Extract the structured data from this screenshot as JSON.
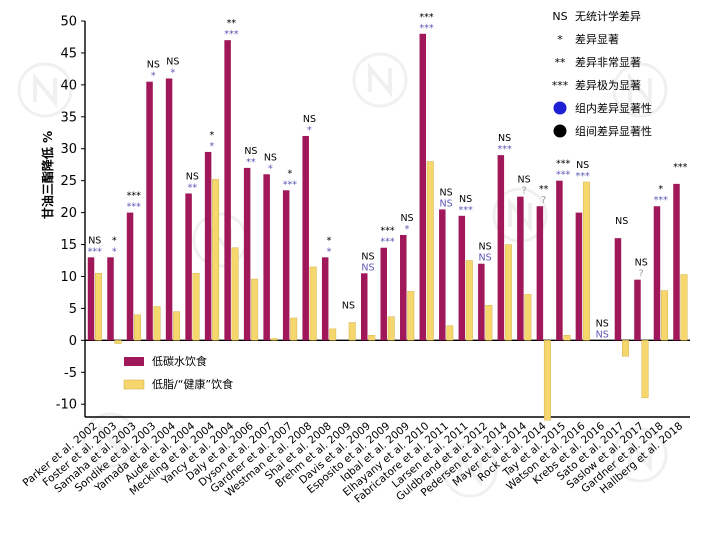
{
  "chart_data": {
    "type": "bar",
    "ylabel": "甘油三酯降低 %",
    "ylim": [
      -12,
      50
    ],
    "yticks": [
      -10,
      -5,
      0,
      5,
      10,
      15,
      20,
      25,
      30,
      35,
      40,
      45,
      50
    ],
    "grid": false,
    "colors": {
      "low_carb": "#a0185a",
      "low_fat": "#f5d76e",
      "within_sig": "#5b57b5",
      "between_sig": "#000000"
    },
    "categories": [
      "Parker et al. 2002",
      "Foster et al. 2003",
      "Samaha et al. 2003",
      "Sondike et al. 2003",
      "Yamada et al. 2004",
      "Aude et al. 2004",
      "Meckling et al. 2004",
      "Yancy et al. 2004",
      "Daly et al. 2006",
      "Dyson et al. 2007",
      "Gardner et al. 2007",
      "Westman et al. 2008",
      "Shai et al. 2008",
      "Brehm et al. 2009",
      "Davis et al. 2009",
      "Esposito et al. 2009",
      "Iqbal et al. 2009",
      "Elhayany et al. 2010",
      "Fabricatore et al. 2011",
      "Larsen et al. 2011",
      "Guldbrand et al. 2012",
      "Pedersen et al. 2014",
      "Mayer et al. 2014",
      "Rock et al. 2014",
      "Tay et al. 2015",
      "Watson et al. 2016",
      "Krebs et al. 2016",
      "Sato et al. 2017",
      "Saslow et al. 2017",
      "Gardner et al. 2018",
      "Hallberg et al. 2018"
    ],
    "series": [
      {
        "name": "低碳水饮食",
        "values": [
          13,
          13,
          20,
          40.5,
          41,
          23,
          29.5,
          47,
          27,
          26,
          23.5,
          32,
          13,
          0,
          10.5,
          14.5,
          16.5,
          48,
          20.5,
          19.5,
          12,
          29,
          22.5,
          21,
          25,
          20,
          0,
          16,
          9.5,
          21,
          24.5
        ]
      },
      {
        "name": "低脂/“健康”饮食",
        "values": [
          10.5,
          -0.5,
          4,
          5.3,
          4.5,
          10.5,
          25.2,
          14.5,
          9.6,
          0.3,
          3.5,
          11.5,
          1.8,
          2.8,
          0.8,
          3.7,
          7.7,
          28,
          2.3,
          12.5,
          5.5,
          15,
          7.2,
          -12.5,
          0.8,
          24.8,
          0,
          -2.5,
          -9,
          7.8,
          10.3
        ]
      }
    ],
    "annotations": [
      {
        "top": "NS",
        "low": "***",
        "lowcolor": "within"
      },
      {
        "top": "*",
        "low": "*",
        "lowcolor": "within"
      },
      {
        "top": "***",
        "low": "***",
        "lowcolor": "within"
      },
      {
        "top": "NS",
        "low": "*",
        "lowcolor": "within"
      },
      {
        "top": "NS",
        "low": "*",
        "lowcolor": "within"
      },
      {
        "top": "NS",
        "low": "**",
        "lowcolor": "within"
      },
      {
        "top": "*",
        "low": "*",
        "lowcolor": "within"
      },
      {
        "top": "**",
        "low": "***",
        "lowcolor": "within"
      },
      {
        "top": "NS",
        "low": "**",
        "lowcolor": "within"
      },
      {
        "top": "NS",
        "low": "*",
        "lowcolor": "within"
      },
      {
        "top": "*",
        "low": "***",
        "lowcolor": "within"
      },
      {
        "top": "NS",
        "low": "*",
        "lowcolor": "within"
      },
      {
        "top": "*",
        "low": "*",
        "lowcolor": "within"
      },
      {
        "top": "NS",
        "low": "",
        "lowcolor": "within"
      },
      {
        "top": "NS",
        "low": "NS",
        "lowcolor": "within"
      },
      {
        "top": "***",
        "low": "***",
        "lowcolor": "within"
      },
      {
        "top": "NS",
        "low": "*",
        "lowcolor": "within"
      },
      {
        "top": "***",
        "low": "***",
        "lowcolor": "within"
      },
      {
        "top": "NS",
        "low": "NS",
        "lowcolor": "within"
      },
      {
        "top": "NS",
        "low": "***",
        "lowcolor": "within"
      },
      {
        "top": "NS",
        "low": "NS",
        "lowcolor": "within"
      },
      {
        "top": "NS",
        "low": "***",
        "lowcolor": "within"
      },
      {
        "top": "NS",
        "low": "?",
        "lowcolor": "grey"
      },
      {
        "top": "**",
        "low": "?",
        "lowcolor": "grey"
      },
      {
        "top": "***",
        "low": "***",
        "lowcolor": "within"
      },
      {
        "top": "NS",
        "low": "***",
        "lowcolor": "within"
      },
      {
        "top": "NS",
        "low": "NS",
        "lowcolor": "within"
      },
      {
        "top": "NS",
        "low": "",
        "lowcolor": "within"
      },
      {
        "top": "NS",
        "low": "?",
        "lowcolor": "grey"
      },
      {
        "top": "*",
        "low": "***",
        "lowcolor": "within"
      },
      {
        "top": "***",
        "low": "",
        "lowcolor": "within"
      }
    ],
    "legend_top": {
      "placement": "top-right",
      "items": [
        {
          "mark": "NS",
          "label": "无统计学差异"
        },
        {
          "mark": "*",
          "label": "差异显著"
        },
        {
          "mark": "**",
          "label": "差异非常显著"
        },
        {
          "mark": "***",
          "label": "差异极为显著"
        },
        {
          "mark": "dot-within",
          "label": "组内差异显著性"
        },
        {
          "mark": "dot-between",
          "label": "组间差异显著性"
        }
      ]
    },
    "legend_bottom": {
      "placement": "bottom-left"
    }
  }
}
